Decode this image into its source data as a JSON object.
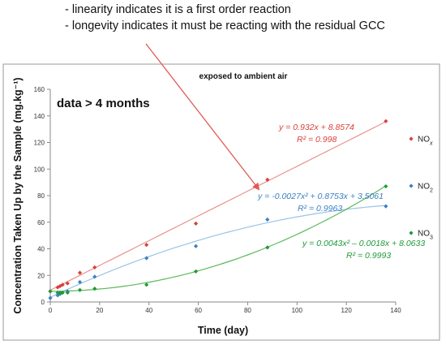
{
  "notes": [
    "- linearity indicates it is a first order reaction",
    "- longevity indicates it must be reacting with the residual GCC"
  ],
  "colors": {
    "nox": "#d9403a",
    "no2": "#3d7fc4",
    "no3": "#1f9a3a",
    "nox_line": "#e8928e",
    "no2_line": "#9cc3e6",
    "no3_line": "#5cb85c",
    "arrow": "#e05a55",
    "border": "#9a9a9a",
    "axis": "#888888"
  },
  "chart_data": {
    "type": "scatter",
    "title": "exposed to ambient air",
    "callout": "data > 4 months",
    "xlabel": "Time (day)",
    "ylabel": "Concentration Taken Up by the Sample (mg.kg⁻¹)",
    "xlim": [
      0,
      140
    ],
    "ylim": [
      0,
      160
    ],
    "x_ticks": [
      "0",
      "20",
      "40",
      "60",
      "80",
      "100",
      "120",
      "140"
    ],
    "y_ticks": [
      "0",
      "20",
      "40",
      "60",
      "80",
      "100",
      "120",
      "140",
      "160"
    ],
    "grid": false,
    "legend_position": "right",
    "series": [
      {
        "key": "nox",
        "name": "NOx",
        "points": [
          [
            0,
            8
          ],
          [
            3,
            11
          ],
          [
            4,
            12
          ],
          [
            5,
            13
          ],
          [
            7,
            14
          ],
          [
            12,
            22
          ],
          [
            18,
            26
          ],
          [
            39,
            43
          ],
          [
            59,
            59
          ],
          [
            88,
            92
          ],
          [
            136,
            136
          ]
        ],
        "trend": {
          "type": "linear",
          "a": 0,
          "b": 0.932,
          "c": 8.8574
        },
        "equation": "y = 0.932x + 8.8574",
        "r2": "R² = 0.998"
      },
      {
        "key": "no2",
        "name": "NO2",
        "points": [
          [
            0,
            3
          ],
          [
            3,
            5
          ],
          [
            4,
            6
          ],
          [
            5,
            7
          ],
          [
            7,
            8
          ],
          [
            12,
            15
          ],
          [
            18,
            19
          ],
          [
            39,
            33
          ],
          [
            59,
            42
          ],
          [
            88,
            62
          ],
          [
            136,
            72
          ]
        ],
        "trend": {
          "type": "poly",
          "a": -0.0027,
          "b": 0.8753,
          "c": 3.5061
        },
        "equation": "y = -0.0027x² + 0.8753x + 3.5061",
        "r2": "R² = 0.9963"
      },
      {
        "key": "no3",
        "name": "NO3",
        "points": [
          [
            0,
            8
          ],
          [
            3,
            7
          ],
          [
            4,
            7
          ],
          [
            5,
            7
          ],
          [
            7,
            7
          ],
          [
            12,
            9
          ],
          [
            18,
            10
          ],
          [
            39,
            13
          ],
          [
            59,
            23
          ],
          [
            88,
            41
          ],
          [
            136,
            87
          ]
        ],
        "trend": {
          "type": "poly",
          "a": 0.0043,
          "b": -0.0018,
          "c": 8.0633
        },
        "equation": "y = 0.0043x² – 0.0018x + 8.0633",
        "r2": "R² = 0.9993"
      }
    ]
  }
}
